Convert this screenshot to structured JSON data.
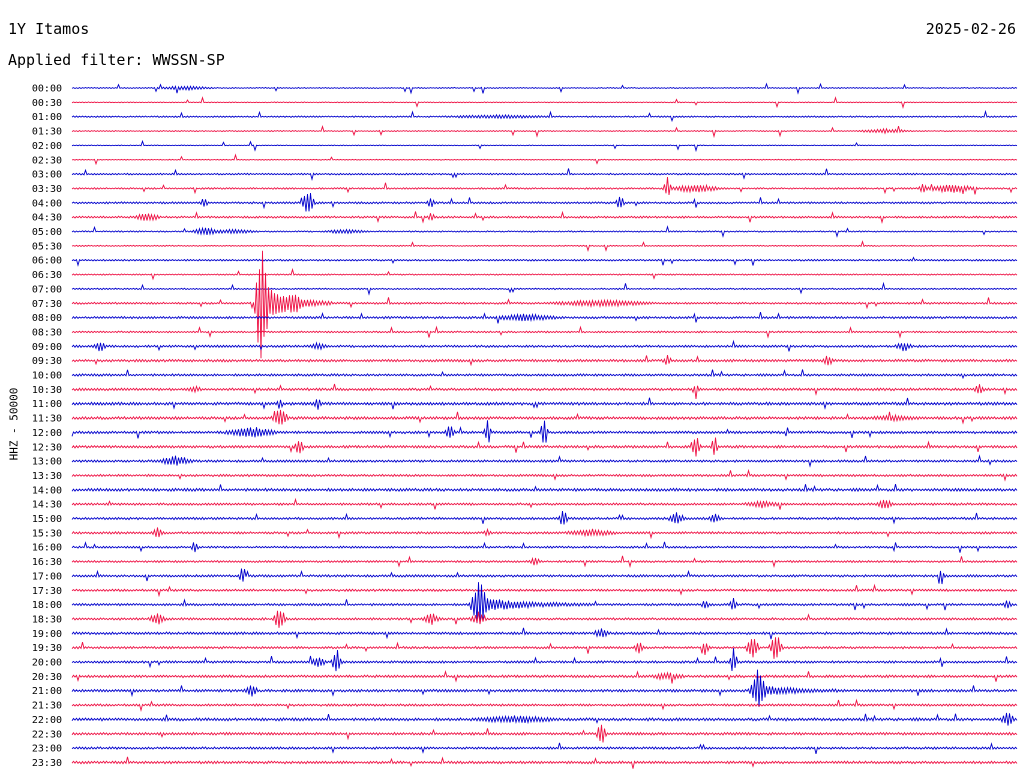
{
  "header": {
    "station": "1Y Itamos",
    "date": "2025-02-26",
    "filter": "Applied filter: WWSSN-SP"
  },
  "chart_data": {
    "type": "line",
    "title": "1Y Itamos",
    "subtitle": "Applied filter: WWSSN-SP",
    "ylabel": "HHZ - 50000",
    "xlabel": "",
    "colors": [
      "#0000cc",
      "#ee1144"
    ],
    "grid": false,
    "row_labels": [
      "00:00",
      "00:30",
      "01:00",
      "01:30",
      "02:00",
      "02:30",
      "03:00",
      "03:30",
      "04:00",
      "04:30",
      "05:00",
      "05:30",
      "06:00",
      "06:30",
      "07:00",
      "07:30",
      "08:00",
      "08:30",
      "09:00",
      "09:30",
      "10:00",
      "10:30",
      "11:00",
      "11:30",
      "12:00",
      "12:30",
      "13:00",
      "13:30",
      "14:00",
      "14:30",
      "15:00",
      "15:30",
      "16:00",
      "16:30",
      "17:00",
      "17:30",
      "18:00",
      "18:30",
      "19:00",
      "19:30",
      "20:00",
      "20:30",
      "21:00",
      "21:30",
      "22:00",
      "22:30",
      "23:00",
      "23:30"
    ],
    "noise": [
      0.4,
      0.3,
      0.5,
      0.4,
      0.3,
      0.3,
      0.6,
      0.6,
      0.7,
      0.7,
      0.5,
      0.4,
      0.6,
      0.5,
      0.5,
      0.7,
      0.8,
      0.6,
      0.8,
      0.9,
      0.8,
      0.9,
      1.0,
      1.0,
      0.9,
      0.9,
      0.8,
      0.8,
      1.0,
      0.8,
      0.8,
      0.8,
      0.7,
      0.7,
      0.8,
      0.8,
      0.8,
      0.8,
      0.9,
      0.8,
      0.8,
      0.9,
      0.9,
      0.8,
      1.0,
      0.9,
      0.8,
      0.9
    ],
    "events": [
      {
        "row": 0,
        "t": 0.12,
        "amp": 2,
        "dur": 0.03
      },
      {
        "row": 2,
        "t": 0.45,
        "amp": 1.5,
        "dur": 0.06
      },
      {
        "row": 3,
        "t": 0.86,
        "amp": 2,
        "dur": 0.03
      },
      {
        "row": 7,
        "t": 0.63,
        "amp": 9,
        "dur": 0.005
      },
      {
        "row": 7,
        "t": 0.66,
        "amp": 4,
        "dur": 0.03
      },
      {
        "row": 7,
        "t": 0.9,
        "amp": 5,
        "dur": 0.005
      },
      {
        "row": 7,
        "t": 0.93,
        "amp": 4,
        "dur": 0.03
      },
      {
        "row": 8,
        "t": 0.14,
        "amp": 6,
        "dur": 0.004
      },
      {
        "row": 8,
        "t": 0.25,
        "amp": 14,
        "dur": 0.008
      },
      {
        "row": 8,
        "t": 0.38,
        "amp": 5,
        "dur": 0.005
      },
      {
        "row": 8,
        "t": 0.58,
        "amp": 9,
        "dur": 0.005
      },
      {
        "row": 9,
        "t": 0.08,
        "amp": 4,
        "dur": 0.015
      },
      {
        "row": 9,
        "t": 0.38,
        "amp": 5,
        "dur": 0.004
      },
      {
        "row": 10,
        "t": 0.14,
        "amp": 4,
        "dur": 0.015
      },
      {
        "row": 10,
        "t": 0.17,
        "amp": 2,
        "dur": 0.03
      },
      {
        "row": 10,
        "t": 0.29,
        "amp": 2,
        "dur": 0.025
      },
      {
        "row": 15,
        "t": 0.2,
        "amp": 65,
        "dur": 0.008,
        "decay": 0.025
      },
      {
        "row": 15,
        "t": 0.235,
        "amp": 6,
        "dur": 0.01
      },
      {
        "row": 15,
        "t": 0.56,
        "amp": 3,
        "dur": 0.06
      },
      {
        "row": 16,
        "t": 0.48,
        "amp": 3,
        "dur": 0.04
      },
      {
        "row": 18,
        "t": 0.03,
        "amp": 5,
        "dur": 0.008
      },
      {
        "row": 18,
        "t": 0.26,
        "amp": 3,
        "dur": 0.01
      },
      {
        "row": 18,
        "t": 0.88,
        "amp": 5,
        "dur": 0.01
      },
      {
        "row": 19,
        "t": 0.63,
        "amp": 5,
        "dur": 0.005
      },
      {
        "row": 19,
        "t": 0.8,
        "amp": 6,
        "dur": 0.006
      },
      {
        "row": 21,
        "t": 0.13,
        "amp": 3,
        "dur": 0.008
      },
      {
        "row": 21,
        "t": 0.66,
        "amp": 6,
        "dur": 0.004
      },
      {
        "row": 21,
        "t": 0.96,
        "amp": 5,
        "dur": 0.006
      },
      {
        "row": 22,
        "t": 0.22,
        "amp": 5,
        "dur": 0.004
      },
      {
        "row": 22,
        "t": 0.26,
        "amp": 6,
        "dur": 0.004
      },
      {
        "row": 23,
        "t": 0.22,
        "amp": 9,
        "dur": 0.01
      },
      {
        "row": 23,
        "t": 0.87,
        "amp": 2,
        "dur": 0.03
      },
      {
        "row": 24,
        "t": 0.19,
        "amp": 5,
        "dur": 0.03
      },
      {
        "row": 24,
        "t": 0.4,
        "amp": 7,
        "dur": 0.006
      },
      {
        "row": 24,
        "t": 0.44,
        "amp": 17,
        "dur": 0.004
      },
      {
        "row": 24,
        "t": 0.5,
        "amp": 16,
        "dur": 0.004
      },
      {
        "row": 25,
        "t": 0.24,
        "amp": 9,
        "dur": 0.006
      },
      {
        "row": 25,
        "t": 0.66,
        "amp": 14,
        "dur": 0.006
      },
      {
        "row": 25,
        "t": 0.68,
        "amp": 12,
        "dur": 0.004
      },
      {
        "row": 26,
        "t": 0.11,
        "amp": 5,
        "dur": 0.02
      },
      {
        "row": 29,
        "t": 0.73,
        "amp": 3,
        "dur": 0.02
      },
      {
        "row": 29,
        "t": 0.86,
        "amp": 5,
        "dur": 0.01
      },
      {
        "row": 30,
        "t": 0.52,
        "amp": 10,
        "dur": 0.005
      },
      {
        "row": 30,
        "t": 0.64,
        "amp": 6,
        "dur": 0.01
      },
      {
        "row": 30,
        "t": 0.68,
        "amp": 5,
        "dur": 0.008
      },
      {
        "row": 31,
        "t": 0.09,
        "amp": 7,
        "dur": 0.006
      },
      {
        "row": 31,
        "t": 0.44,
        "amp": 3,
        "dur": 0.005
      },
      {
        "row": 31,
        "t": 0.55,
        "amp": 3,
        "dur": 0.03
      },
      {
        "row": 32,
        "t": 0.13,
        "amp": 7,
        "dur": 0.004
      },
      {
        "row": 33,
        "t": 0.49,
        "amp": 5,
        "dur": 0.006
      },
      {
        "row": 34,
        "t": 0.18,
        "amp": 12,
        "dur": 0.003
      },
      {
        "row": 34,
        "t": 0.92,
        "amp": 9,
        "dur": 0.004
      },
      {
        "row": 36,
        "t": 0.43,
        "amp": 24,
        "dur": 0.01,
        "decay": 0.04
      },
      {
        "row": 36,
        "t": 0.67,
        "amp": 5,
        "dur": 0.005
      },
      {
        "row": 36,
        "t": 0.7,
        "amp": 9,
        "dur": 0.004
      },
      {
        "row": 36,
        "t": 0.99,
        "amp": 4,
        "dur": 0.005
      },
      {
        "row": 37,
        "t": 0.09,
        "amp": 6,
        "dur": 0.01
      },
      {
        "row": 37,
        "t": 0.22,
        "amp": 12,
        "dur": 0.008
      },
      {
        "row": 37,
        "t": 0.38,
        "amp": 6,
        "dur": 0.01
      },
      {
        "row": 37,
        "t": 0.43,
        "amp": 7,
        "dur": 0.01
      },
      {
        "row": 38,
        "t": 0.56,
        "amp": 4,
        "dur": 0.01
      },
      {
        "row": 39,
        "t": 0.6,
        "amp": 6,
        "dur": 0.006
      },
      {
        "row": 39,
        "t": 0.67,
        "amp": 8,
        "dur": 0.005
      },
      {
        "row": 39,
        "t": 0.72,
        "amp": 12,
        "dur": 0.008
      },
      {
        "row": 39,
        "t": 0.745,
        "amp": 14,
        "dur": 0.008
      },
      {
        "row": 40,
        "t": 0.26,
        "amp": 6,
        "dur": 0.01
      },
      {
        "row": 40,
        "t": 0.28,
        "amp": 15,
        "dur": 0.006
      },
      {
        "row": 40,
        "t": 0.7,
        "amp": 14,
        "dur": 0.005
      },
      {
        "row": 41,
        "t": 0.63,
        "amp": 3,
        "dur": 0.02
      },
      {
        "row": 42,
        "t": 0.19,
        "amp": 6,
        "dur": 0.008
      },
      {
        "row": 42,
        "t": 0.725,
        "amp": 18,
        "dur": 0.01,
        "decay": 0.03
      },
      {
        "row": 44,
        "t": 0.47,
        "amp": 3,
        "dur": 0.05
      },
      {
        "row": 44,
        "t": 0.99,
        "amp": 7,
        "dur": 0.008
      },
      {
        "row": 45,
        "t": 0.56,
        "amp": 14,
        "dur": 0.006
      }
    ]
  }
}
